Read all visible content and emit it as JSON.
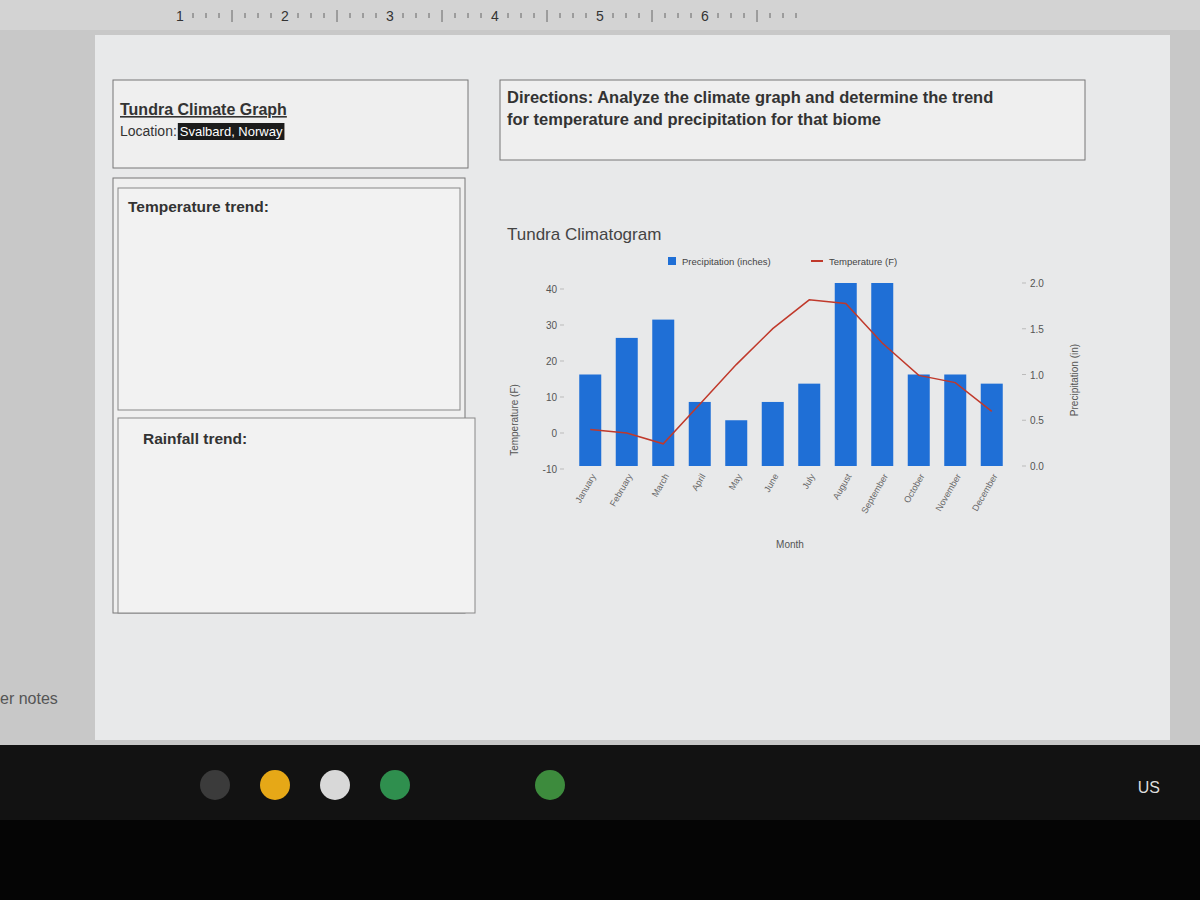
{
  "ruler": {
    "ticks": [
      1,
      2,
      3,
      4,
      5,
      6
    ]
  },
  "header": {
    "title": "Tundra Climate Graph",
    "location_label": "Location:",
    "location": "Svalbard, Norway"
  },
  "directions": [
    "Directions: Analyze the climate graph and determine the trend",
    "for temperature and precipitation for that biome"
  ],
  "sections": [
    {
      "label": "Temperature trend:"
    },
    {
      "label": "Rainfall trend:"
    }
  ],
  "notes_label": "er notes",
  "taskbar": {
    "locale": "US"
  },
  "chart_data": {
    "type": "bar",
    "title": "Tundra Climatogram",
    "x_label": "Month",
    "y_label": "Temperature (F)",
    "y2_label": "Precipitation (in)",
    "categories": [
      "January",
      "February",
      "March",
      "April",
      "May",
      "June",
      "July",
      "August",
      "September",
      "October",
      "November",
      "December"
    ],
    "series": [
      {
        "name": "Precipitation (inches)",
        "type": "bar",
        "color": "#1f6fd6",
        "axis": "y2",
        "values": [
          1.0,
          1.4,
          1.6,
          0.7,
          0.5,
          0.7,
          0.9,
          2.0,
          2.0,
          1.0,
          1.0,
          0.9
        ]
      },
      {
        "name": "Temperature (F)",
        "type": "line",
        "color": "#c0392b",
        "values": [
          1,
          0,
          -3,
          8,
          19,
          29,
          37,
          36,
          25,
          16,
          14,
          6
        ]
      }
    ],
    "ylim": [
      -10,
      40
    ],
    "yticks": [
      -10,
      0,
      10,
      20,
      30,
      40
    ],
    "y2lim": [
      0,
      2
    ],
    "y2ticks": [
      {
        "value": 0,
        "label": "0.0"
      },
      {
        "value": 0.5,
        "label": "0.5"
      },
      {
        "value": 1,
        "label": "1.0"
      },
      {
        "value": 1.5,
        "label": "1.5"
      },
      {
        "value": 2,
        "label": "2.0"
      }
    ],
    "legend": "top",
    "grid": false
  }
}
